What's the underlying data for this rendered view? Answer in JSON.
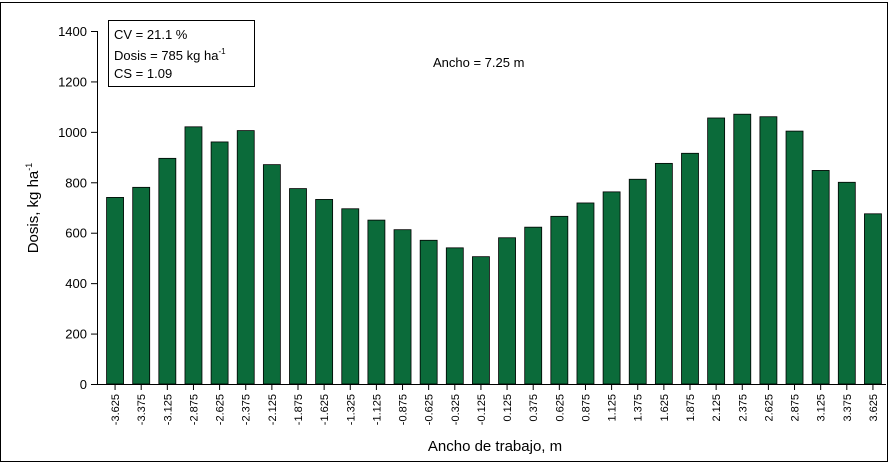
{
  "chart_data": {
    "type": "bar",
    "annotations": {
      "cv": "CV = 21.1 %",
      "dosis": {
        "text": "Dosis = 785 kg ha",
        "sup": "-1"
      },
      "cs": "CS = 1.09",
      "ancho": "Ancho = 7.25 m"
    },
    "x_label": "Ancho de trabajo, m",
    "y_label": {
      "text": "Dosis, kg ha",
      "sup": "-1"
    },
    "categories": [
      "-3.625",
      "-3.375",
      "-3.125",
      "-2.875",
      "-2.625",
      "-2.375",
      "-2.125",
      "-1.875",
      "-1.625",
      "-1.325",
      "-1.125",
      "-0.875",
      "-0.625",
      "-0.325",
      "-0.125",
      "0.125",
      "0.375",
      "0.625",
      "0.875",
      "1.125",
      "1.375",
      "1.625",
      "1.875",
      "2.125",
      "2.375",
      "2.625",
      "2.875",
      "3.125",
      "3.375",
      "3.625"
    ],
    "values": [
      740,
      780,
      895,
      1020,
      960,
      1005,
      870,
      775,
      732,
      695,
      650,
      612,
      570,
      540,
      505,
      580,
      622,
      665,
      718,
      762,
      812,
      875,
      915,
      1055,
      1070,
      1060,
      1003,
      847,
      800,
      675
    ],
    "color": "#0b6b3a",
    "ylim": [
      0,
      1400
    ],
    "yticks": [
      0,
      200,
      400,
      600,
      800,
      1000,
      1200,
      1400
    ]
  }
}
